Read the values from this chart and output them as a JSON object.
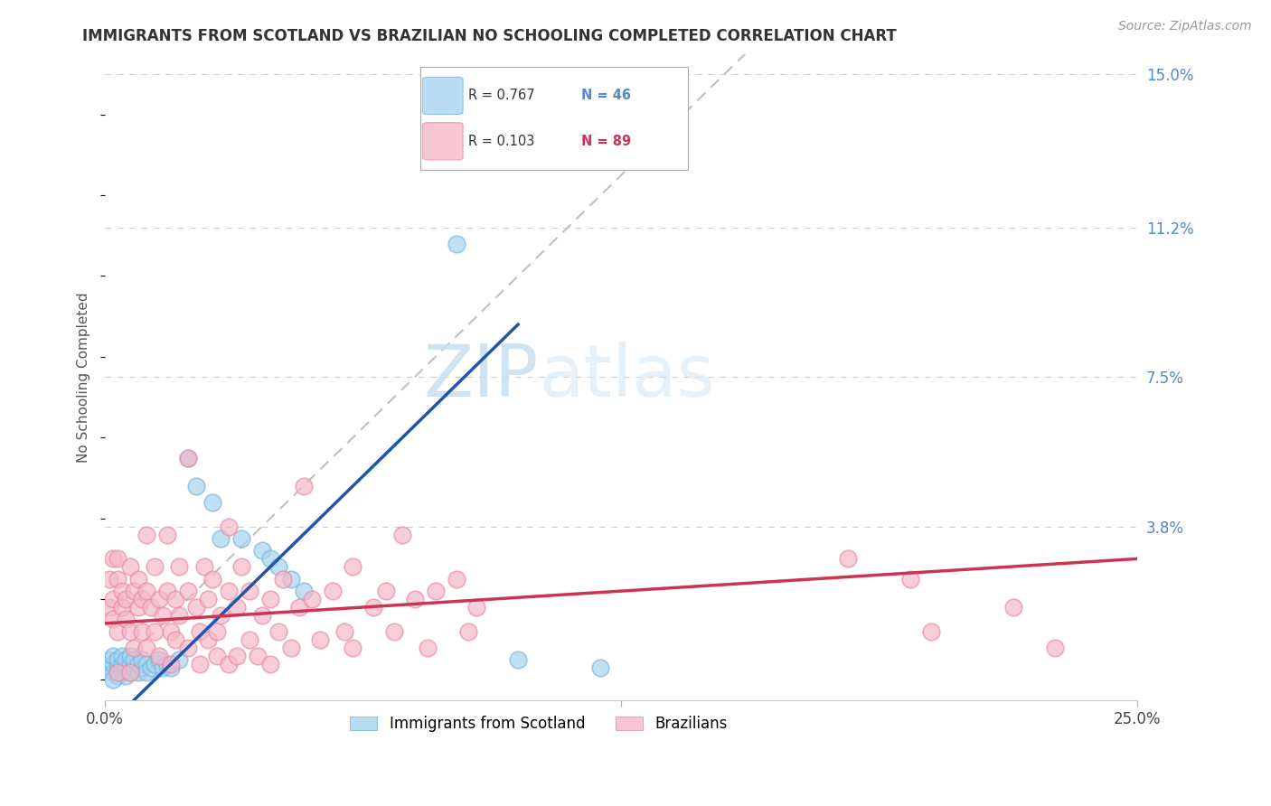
{
  "title": "IMMIGRANTS FROM SCOTLAND VS BRAZILIAN NO SCHOOLING COMPLETED CORRELATION CHART",
  "source": "Source: ZipAtlas.com",
  "ylabel": "No Schooling Completed",
  "xlim": [
    0.0,
    0.25
  ],
  "ylim": [
    -0.005,
    0.155
  ],
  "ytick_labels_right": [
    "15.0%",
    "11.2%",
    "7.5%",
    "3.8%"
  ],
  "ytick_values_right": [
    0.15,
    0.112,
    0.075,
    0.038
  ],
  "grid_color": "#cccccc",
  "background_color": "#ffffff",
  "scatter_blue_color": "#a8d4f0",
  "scatter_blue_edge": "#7ab8e0",
  "scatter_pink_color": "#f4b8c8",
  "scatter_pink_edge": "#e890a8",
  "line_blue_color": "#2255aa",
  "line_pink_color": "#cc3355",
  "diagonal_color": "#c0c0c0",
  "legend_label_blue": "Immigrants from Scotland",
  "legend_label_pink": "Brazilians",
  "watermark_zip": "ZIP",
  "watermark_atlas": "atlas",
  "blue_points": [
    [
      0.001,
      0.003
    ],
    [
      0.001,
      0.005
    ],
    [
      0.002,
      0.002
    ],
    [
      0.002,
      0.004
    ],
    [
      0.002,
      0.006
    ],
    [
      0.003,
      0.003
    ],
    [
      0.003,
      0.005
    ],
    [
      0.003,
      0.001
    ],
    [
      0.004,
      0.004
    ],
    [
      0.004,
      0.002
    ],
    [
      0.004,
      0.006
    ],
    [
      0.005,
      0.003
    ],
    [
      0.005,
      0.005
    ],
    [
      0.005,
      0.001
    ],
    [
      0.006,
      0.004
    ],
    [
      0.006,
      0.002
    ],
    [
      0.006,
      0.006
    ],
    [
      0.007,
      0.003
    ],
    [
      0.007,
      0.005
    ],
    [
      0.008,
      0.004
    ],
    [
      0.008,
      0.002
    ],
    [
      0.009,
      0.003
    ],
    [
      0.009,
      0.005
    ],
    [
      0.01,
      0.004
    ],
    [
      0.01,
      0.002
    ],
    [
      0.011,
      0.003
    ],
    [
      0.012,
      0.004
    ],
    [
      0.013,
      0.005
    ],
    [
      0.014,
      0.003
    ],
    [
      0.015,
      0.004
    ],
    [
      0.016,
      0.003
    ],
    [
      0.018,
      0.005
    ],
    [
      0.02,
      0.055
    ],
    [
      0.022,
      0.048
    ],
    [
      0.026,
      0.044
    ],
    [
      0.028,
      0.035
    ],
    [
      0.033,
      0.035
    ],
    [
      0.038,
      0.032
    ],
    [
      0.04,
      0.03
    ],
    [
      0.042,
      0.028
    ],
    [
      0.045,
      0.025
    ],
    [
      0.048,
      0.022
    ],
    [
      0.085,
      0.108
    ],
    [
      0.1,
      0.005
    ],
    [
      0.12,
      0.003
    ],
    [
      0.002,
      0.0
    ]
  ],
  "pink_points": [
    [
      0.001,
      0.025
    ],
    [
      0.001,
      0.018
    ],
    [
      0.002,
      0.03
    ],
    [
      0.002,
      0.015
    ],
    [
      0.002,
      0.02
    ],
    [
      0.003,
      0.025
    ],
    [
      0.003,
      0.012
    ],
    [
      0.003,
      0.03
    ],
    [
      0.004,
      0.018
    ],
    [
      0.004,
      0.022
    ],
    [
      0.005,
      0.015
    ],
    [
      0.005,
      0.02
    ],
    [
      0.006,
      0.028
    ],
    [
      0.006,
      0.012
    ],
    [
      0.007,
      0.022
    ],
    [
      0.007,
      0.008
    ],
    [
      0.008,
      0.018
    ],
    [
      0.008,
      0.025
    ],
    [
      0.009,
      0.012
    ],
    [
      0.009,
      0.02
    ],
    [
      0.01,
      0.008
    ],
    [
      0.01,
      0.022
    ],
    [
      0.01,
      0.036
    ],
    [
      0.011,
      0.018
    ],
    [
      0.012,
      0.012
    ],
    [
      0.012,
      0.028
    ],
    [
      0.013,
      0.02
    ],
    [
      0.013,
      0.006
    ],
    [
      0.014,
      0.016
    ],
    [
      0.015,
      0.022
    ],
    [
      0.015,
      0.036
    ],
    [
      0.016,
      0.012
    ],
    [
      0.016,
      0.004
    ],
    [
      0.017,
      0.02
    ],
    [
      0.017,
      0.01
    ],
    [
      0.018,
      0.028
    ],
    [
      0.018,
      0.016
    ],
    [
      0.02,
      0.022
    ],
    [
      0.02,
      0.008
    ],
    [
      0.02,
      0.055
    ],
    [
      0.022,
      0.018
    ],
    [
      0.023,
      0.004
    ],
    [
      0.023,
      0.012
    ],
    [
      0.024,
      0.028
    ],
    [
      0.025,
      0.02
    ],
    [
      0.025,
      0.01
    ],
    [
      0.026,
      0.025
    ],
    [
      0.027,
      0.012
    ],
    [
      0.027,
      0.006
    ],
    [
      0.028,
      0.016
    ],
    [
      0.03,
      0.022
    ],
    [
      0.03,
      0.004
    ],
    [
      0.03,
      0.038
    ],
    [
      0.032,
      0.006
    ],
    [
      0.032,
      0.018
    ],
    [
      0.033,
      0.028
    ],
    [
      0.035,
      0.01
    ],
    [
      0.035,
      0.022
    ],
    [
      0.037,
      0.006
    ],
    [
      0.038,
      0.016
    ],
    [
      0.04,
      0.02
    ],
    [
      0.04,
      0.004
    ],
    [
      0.042,
      0.012
    ],
    [
      0.043,
      0.025
    ],
    [
      0.045,
      0.008
    ],
    [
      0.047,
      0.018
    ],
    [
      0.048,
      0.048
    ],
    [
      0.05,
      0.02
    ],
    [
      0.052,
      0.01
    ],
    [
      0.055,
      0.022
    ],
    [
      0.058,
      0.012
    ],
    [
      0.06,
      0.028
    ],
    [
      0.06,
      0.008
    ],
    [
      0.065,
      0.018
    ],
    [
      0.068,
      0.022
    ],
    [
      0.07,
      0.012
    ],
    [
      0.072,
      0.036
    ],
    [
      0.075,
      0.02
    ],
    [
      0.078,
      0.008
    ],
    [
      0.08,
      0.022
    ],
    [
      0.085,
      0.025
    ],
    [
      0.088,
      0.012
    ],
    [
      0.09,
      0.018
    ],
    [
      0.18,
      0.03
    ],
    [
      0.195,
      0.025
    ],
    [
      0.2,
      0.012
    ],
    [
      0.22,
      0.018
    ],
    [
      0.23,
      0.008
    ],
    [
      0.003,
      0.002
    ],
    [
      0.006,
      0.002
    ]
  ],
  "blue_line": [
    [
      0.0,
      -0.012
    ],
    [
      0.1,
      0.088
    ]
  ],
  "pink_line": [
    [
      0.0,
      0.014
    ],
    [
      0.25,
      0.03
    ]
  ]
}
